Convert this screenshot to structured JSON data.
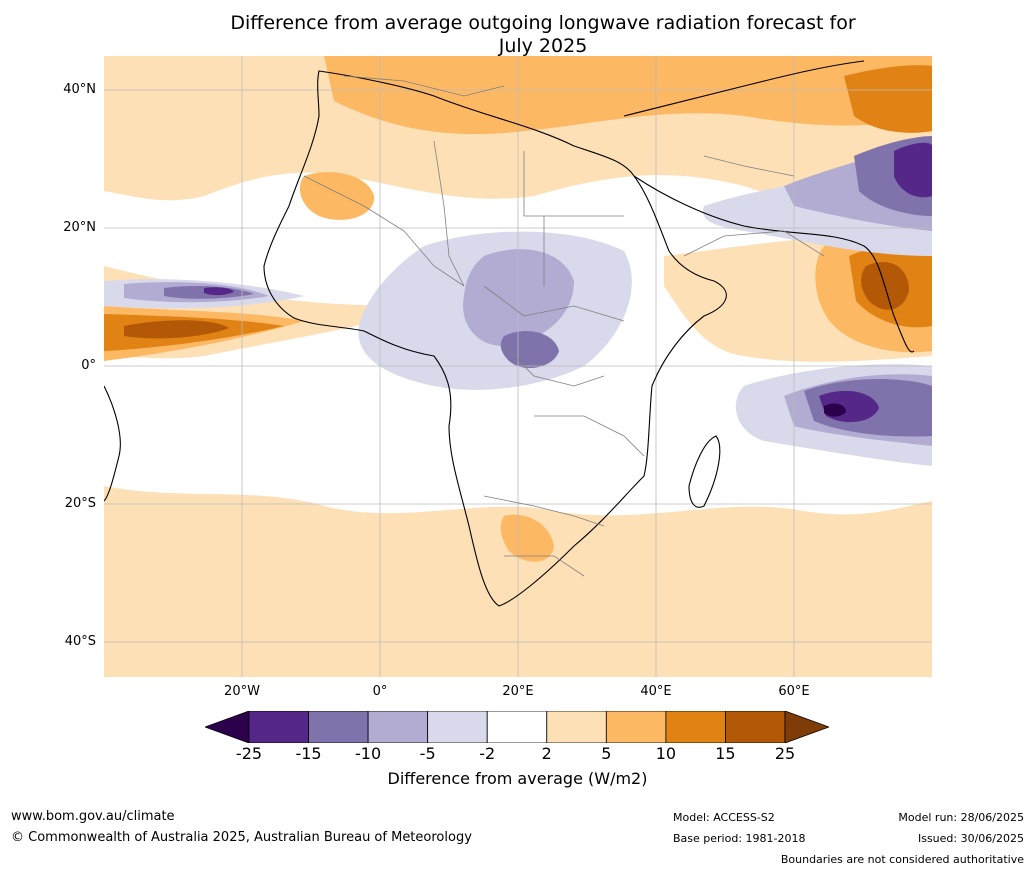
{
  "title_line1": "Difference from average outgoing longwave radiation forecast for",
  "title_line2": "July 2025",
  "lat_labels": [
    "40°N",
    "20°N",
    "0°",
    "20°S",
    "40°S"
  ],
  "lon_labels": [
    "20°W",
    "0°",
    "20°E",
    "40°E",
    "60°E"
  ],
  "colorbar": {
    "ticks": [
      "-25",
      "-15",
      "-10",
      "-5",
      "-2",
      "2",
      "5",
      "10",
      "15",
      "25"
    ],
    "label": "Difference from average (W/m2)",
    "colors": [
      "#2d004b",
      "#542788",
      "#8073ac",
      "#b2abd2",
      "#d8daeb",
      "#ffffff",
      "#fee0b6",
      "#fdb863",
      "#e08214",
      "#b35806",
      "#7f3b08"
    ]
  },
  "footer": {
    "url": "www.bom.gov.au/climate",
    "copyright": "© Commonwealth of Australia 2025, Australian Bureau of Meteorology",
    "model": "Model: ACCESS-S2",
    "base_period": "Base period: 1981-2018",
    "model_run": "Model run: 28/06/2025",
    "issued": "Issued: 30/06/2025",
    "disclaimer": "Boundaries are not considered authoritative"
  }
}
